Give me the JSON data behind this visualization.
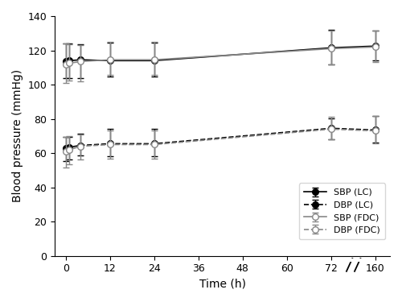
{
  "xlabel": "Time (h)",
  "ylabel": "Blood pressure (mmHg)",
  "yticks": [
    0,
    20,
    40,
    60,
    80,
    100,
    120,
    140
  ],
  "xticks_disp": [
    0,
    12,
    24,
    36,
    48,
    60,
    72,
    84
  ],
  "xticks_labels": [
    "0",
    "12",
    "24",
    "36",
    "48",
    "60",
    "72",
    "160"
  ],
  "time_h": [
    0,
    1,
    4,
    12,
    24,
    72,
    160
  ],
  "sbp_lc_mean": [
    113.5,
    114.0,
    114.5,
    114.0,
    114.0,
    121.5,
    122.5
  ],
  "sbp_lc_err_up": [
    10.5,
    10.0,
    9.0,
    10.5,
    10.5,
    10.5,
    9.0
  ],
  "sbp_lc_err_dn": [
    9.5,
    10.0,
    10.5,
    9.5,
    9.5,
    9.5,
    8.5
  ],
  "dbp_lc_mean": [
    63.0,
    63.5,
    64.5,
    65.5,
    65.5,
    74.5,
    73.5
  ],
  "dbp_lc_err_up": [
    6.5,
    6.0,
    7.0,
    8.5,
    8.5,
    6.0,
    8.0
  ],
  "dbp_lc_err_dn": [
    7.5,
    7.0,
    6.0,
    7.5,
    7.5,
    6.5,
    7.5
  ],
  "sbp_fdc_mean": [
    112.0,
    112.5,
    113.5,
    114.5,
    114.5,
    121.0,
    122.0
  ],
  "sbp_fdc_err_up": [
    12.0,
    11.0,
    9.5,
    10.5,
    10.5,
    10.5,
    9.5
  ],
  "sbp_fdc_err_dn": [
    11.0,
    10.0,
    11.5,
    9.0,
    9.0,
    9.0,
    9.0
  ],
  "dbp_fdc_mean": [
    61.0,
    62.0,
    64.0,
    65.0,
    65.0,
    74.0,
    73.0
  ],
  "dbp_fdc_err_up": [
    8.5,
    8.0,
    7.0,
    8.0,
    8.0,
    7.0,
    8.5
  ],
  "dbp_fdc_err_dn": [
    9.5,
    8.5,
    7.5,
    8.0,
    8.0,
    6.0,
    7.5
  ],
  "color_lc": "#000000",
  "color_fdc": "#888888",
  "legend_labels": [
    "SBP (LC)",
    "DBP (LC)",
    "SBP (FDC)",
    "DBP (FDC)"
  ]
}
